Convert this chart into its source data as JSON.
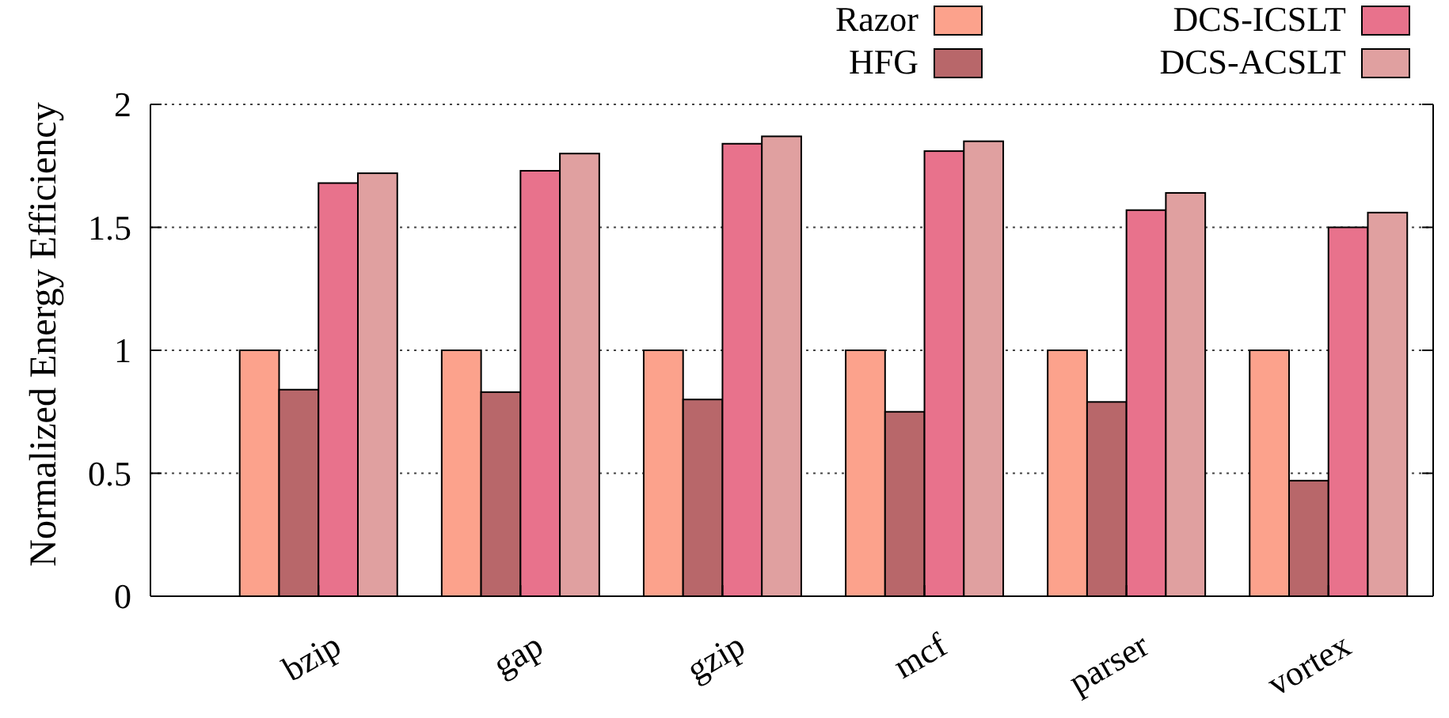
{
  "chart_data": {
    "type": "bar",
    "ylabel": "Normalized Energy Efficiency",
    "categories": [
      "bzip",
      "gap",
      "gzip",
      "mcf",
      "parser",
      "vortex"
    ],
    "series": [
      {
        "name": "Razor",
        "color": "#fca28c",
        "values": [
          1,
          1,
          1,
          1,
          1,
          1
        ]
      },
      {
        "name": "HFG",
        "color": "#b8676a",
        "values": [
          0.84,
          0.83,
          0.8,
          0.75,
          0.79,
          0.47
        ]
      },
      {
        "name": "DCS-ICSLT",
        "color": "#e8728c",
        "values": [
          1.68,
          1.73,
          1.84,
          1.81,
          1.57,
          1.5
        ]
      },
      {
        "name": "DCS-ACSLT",
        "color": "#e0a0a0",
        "values": [
          1.72,
          1.8,
          1.87,
          1.85,
          1.64,
          1.56
        ]
      }
    ],
    "ylim": [
      0,
      2
    ],
    "yticks": [
      0,
      0.5,
      1,
      1.5,
      2
    ],
    "grid": "y",
    "legend": "top right"
  }
}
